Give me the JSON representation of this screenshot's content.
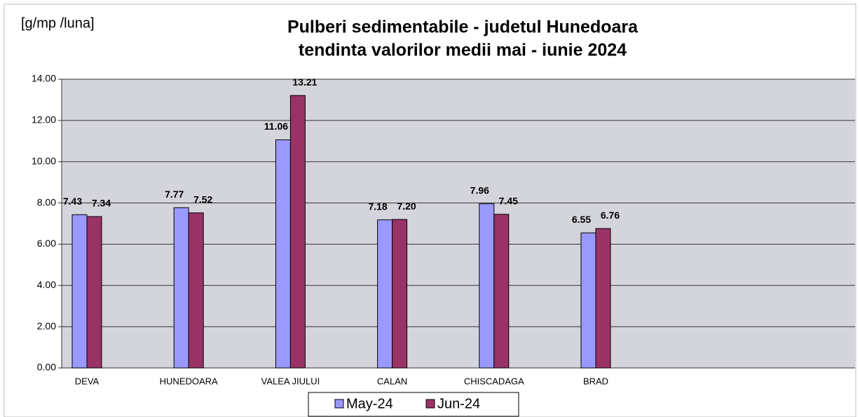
{
  "chart_data": {
    "type": "bar",
    "title": [
      "Pulberi sedimentabile - judetul Hunedoara",
      "tendinta valorilor medii mai - iunie 2024"
    ],
    "y_label": "[g/mp /luna]",
    "categories": [
      "DEVA",
      "HUNEDOARA",
      "VALEA JIULUI",
      "CALAN",
      "CHISCADAGA",
      "BRAD"
    ],
    "series": [
      {
        "name": "May-24",
        "color": "#9999ff",
        "values": [
          7.43,
          7.77,
          11.06,
          7.18,
          7.96,
          6.55
        ],
        "value_labels": [
          "7.43",
          "7.77",
          "11.06",
          "7.18",
          "7.96",
          "6.55"
        ]
      },
      {
        "name": "Jun-24",
        "color": "#993366",
        "values": [
          7.34,
          7.52,
          13.21,
          7.2,
          7.45,
          6.76
        ],
        "value_labels": [
          "7.34",
          "7.52",
          "13.21",
          "7.20",
          "7.45",
          "6.76"
        ]
      }
    ],
    "ylim": [
      0,
      14
    ],
    "yticks": [
      {
        "value": 0,
        "label": "0.00"
      },
      {
        "value": 2,
        "label": "2.00"
      },
      {
        "value": 4,
        "label": "4.00"
      },
      {
        "value": 6,
        "label": "6.00"
      },
      {
        "value": 8,
        "label": "8.00"
      },
      {
        "value": 10,
        "label": "10.00"
      },
      {
        "value": 12,
        "label": "12.00"
      },
      {
        "value": 14,
        "label": "14.00"
      }
    ],
    "grid": true,
    "legend": "bottom"
  }
}
